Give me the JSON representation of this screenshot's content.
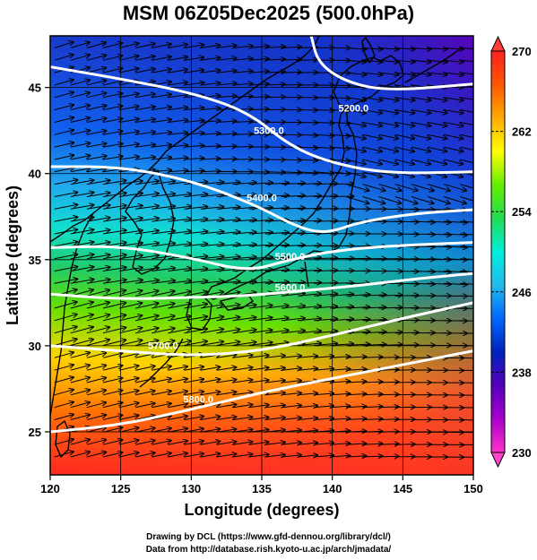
{
  "title": "MSM 06Z05Dec2025 (500.0hPa)",
  "credits": {
    "line1": "Drawing by DCL (https://www.gfd-dennou.org/library/dcl/)",
    "line2": "Data from http://database.rish.kyoto-u.ac.jp/arch/jmadata/"
  },
  "chart_data": {
    "type": "heatmap",
    "xlabel": "Longitude (degrees)",
    "ylabel": "Latitude  (degrees)",
    "xlim": [
      120,
      150
    ],
    "ylim": [
      22.5,
      48
    ],
    "x_ticks": [
      120,
      125,
      130,
      135,
      140,
      145,
      150
    ],
    "y_ticks": [
      25,
      30,
      35,
      40,
      45
    ],
    "grid": true,
    "colorbar": {
      "min": 230,
      "max": 270,
      "ticks": [
        230,
        238,
        246,
        254,
        262,
        270
      ],
      "colors": [
        "#ff33cc",
        "#aa00cc",
        "#5500bb",
        "#0022bb",
        "#0066ff",
        "#22bbee",
        "#00eedd",
        "#22dd55",
        "#66ee00",
        "#ffff00",
        "#ffaa00",
        "#ff5500",
        "#ff2222"
      ]
    },
    "contours": [
      {
        "label": "5200.0",
        "label_lon": 141.5,
        "label_lat": 43.6,
        "points": [
          [
            138.5,
            48.0
          ],
          [
            139.0,
            46.4
          ],
          [
            141.0,
            45.3
          ],
          [
            144.0,
            44.8
          ],
          [
            150.0,
            45.2
          ]
        ]
      },
      {
        "label": "5300.0",
        "label_lon": 135.5,
        "label_lat": 42.3,
        "points": [
          [
            120.0,
            46.2
          ],
          [
            125.0,
            45.5
          ],
          [
            130.0,
            44.7
          ],
          [
            134.0,
            43.6
          ],
          [
            137.0,
            41.6
          ],
          [
            140.0,
            40.6
          ],
          [
            144.0,
            40.0
          ],
          [
            150.0,
            40.1
          ]
        ]
      },
      {
        "label": "5400.0",
        "label_lon": 135.0,
        "label_lat": 38.4,
        "points": [
          [
            120.0,
            40.4
          ],
          [
            125.0,
            40.4
          ],
          [
            130.0,
            39.6
          ],
          [
            134.5,
            38.2
          ],
          [
            137.5,
            36.9
          ],
          [
            139.5,
            36.5
          ],
          [
            142.0,
            37.2
          ],
          [
            146.0,
            37.7
          ],
          [
            150.0,
            37.9
          ]
        ]
      },
      {
        "label": "5500.0",
        "label_lon": 137.0,
        "label_lat": 35.0,
        "points": [
          [
            120.0,
            35.7
          ],
          [
            125.0,
            35.8
          ],
          [
            130.0,
            35.1
          ],
          [
            134.0,
            34.3
          ],
          [
            137.0,
            35.0
          ],
          [
            140.0,
            35.5
          ],
          [
            144.0,
            35.8
          ],
          [
            150.0,
            36.0
          ]
        ]
      },
      {
        "label": "5600.0",
        "label_lon": 137.0,
        "label_lat": 33.2,
        "points": [
          [
            120.0,
            33.0
          ],
          [
            125.0,
            32.7
          ],
          [
            130.0,
            32.8
          ],
          [
            134.0,
            32.9
          ],
          [
            138.0,
            33.2
          ],
          [
            142.0,
            33.5
          ],
          [
            146.0,
            33.9
          ],
          [
            150.0,
            34.2
          ]
        ]
      },
      {
        "label": "5700.0",
        "label_lon": 128.0,
        "label_lat": 29.8,
        "points": [
          [
            120.0,
            30.0
          ],
          [
            125.0,
            29.7
          ],
          [
            130.0,
            29.4
          ],
          [
            135.0,
            29.7
          ],
          [
            140.0,
            30.6
          ],
          [
            145.0,
            31.6
          ],
          [
            150.0,
            32.5
          ]
        ]
      },
      {
        "label": "5800.0",
        "label_lon": 130.5,
        "label_lat": 26.7,
        "points": [
          [
            120.0,
            25.0
          ],
          [
            125.0,
            25.4
          ],
          [
            130.0,
            26.3
          ],
          [
            135.0,
            27.3
          ],
          [
            140.0,
            28.1
          ],
          [
            145.0,
            28.9
          ],
          [
            150.0,
            29.7
          ]
        ]
      }
    ]
  }
}
